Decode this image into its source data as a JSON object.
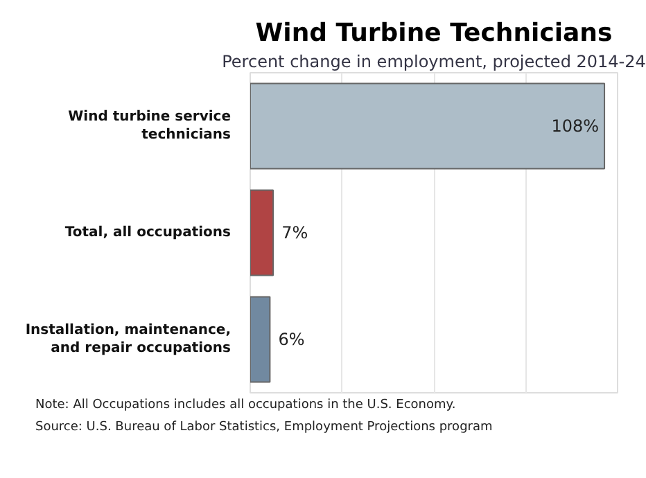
{
  "chart_data": {
    "type": "bar",
    "orientation": "horizontal",
    "title": "Wind Turbine Technicians",
    "subtitle": "Percent change in employment, projected 2014-24",
    "categories": [
      "Wind turbine service\ntechnicians",
      "Total, all occupations",
      "Installation, maintenance,\nand repair occupations"
    ],
    "values": [
      108,
      7,
      6
    ],
    "colors": [
      "#adbdc8",
      "#b04444",
      "#7189a0"
    ],
    "value_labels": [
      "108%",
      "7%",
      "6%"
    ],
    "xlim": [
      0,
      112
    ],
    "xticks": [
      {
        "value": 28,
        "label": null
      },
      {
        "value": 56,
        "label": null
      },
      {
        "value": 84,
        "label": null
      }
    ],
    "grid": "x",
    "tick_labels": "y",
    "annotations": [
      "Note: All Occupations includes all occupations in the U.S. Economy.",
      "Source: U.S. Bureau of Labor Statistics, Employment Projections program"
    ]
  }
}
